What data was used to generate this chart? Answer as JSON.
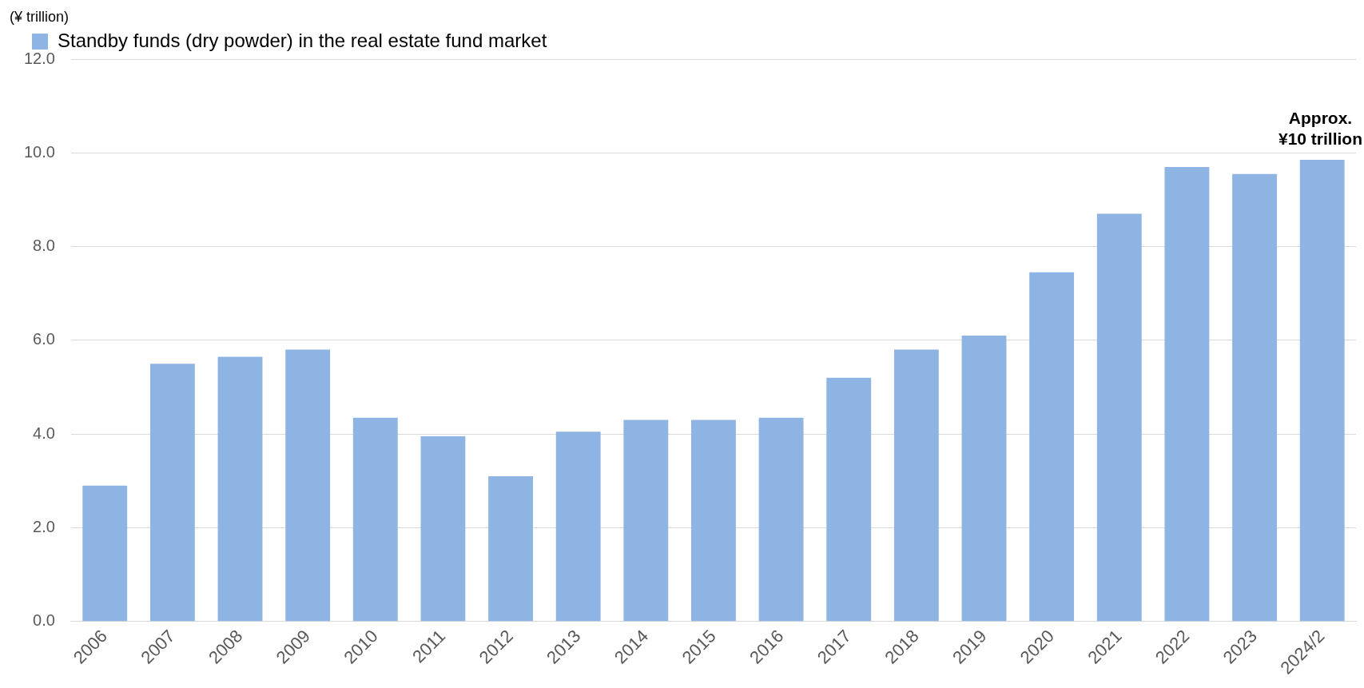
{
  "chart_data": {
    "type": "bar",
    "ylabel": "(¥ trillion)",
    "categories": [
      "2006",
      "2007",
      "2008",
      "2009",
      "2010",
      "2011",
      "2012",
      "2013",
      "2014",
      "2015",
      "2016",
      "2017",
      "2018",
      "2019",
      "2020",
      "2021",
      "2022",
      "2023",
      "2024/2"
    ],
    "series": [
      {
        "name": "Standby funds (dry powder) in the real estate fund market",
        "color": "#8eb4e3",
        "values": [
          2.9,
          5.5,
          5.65,
          5.8,
          4.35,
          3.95,
          3.1,
          4.05,
          4.3,
          4.3,
          4.35,
          5.2,
          5.8,
          6.1,
          7.45,
          8.7,
          9.7,
          9.55,
          9.85
        ]
      }
    ],
    "ylim": [
      0,
      12
    ],
    "yticks": [
      {
        "value": 0,
        "label": "0.0"
      },
      {
        "value": 2,
        "label": "2.0"
      },
      {
        "value": 4,
        "label": "4.0"
      },
      {
        "value": 6,
        "label": "6.0"
      },
      {
        "value": 8,
        "label": "8.0"
      },
      {
        "value": 10,
        "label": "10.0"
      },
      {
        "value": 12,
        "label": "12.0"
      }
    ],
    "annotations": [
      {
        "text": "Approx.\n¥10 trillion",
        "x": "2024/2",
        "y": 9.85
      }
    ],
    "grid": "y",
    "legend": "top left"
  }
}
